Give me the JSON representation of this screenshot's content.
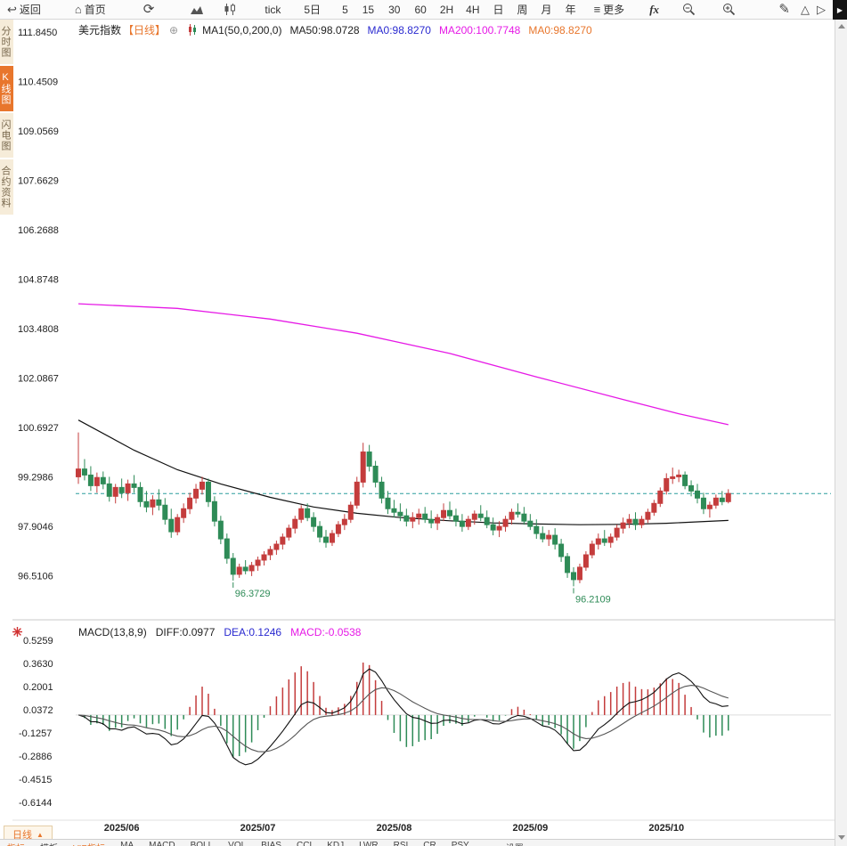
{
  "toolbar": {
    "back": "返回",
    "home": "首页",
    "tick": "tick",
    "day5": "5日",
    "periods": [
      "5",
      "15",
      "30",
      "60",
      "2H",
      "4H",
      "日",
      "周",
      "月",
      "年"
    ],
    "more": "更多",
    "fx": "fx"
  },
  "sidebar": {
    "items": [
      {
        "label": "分时图"
      },
      {
        "label": "K线图"
      },
      {
        "label": "闪电图"
      },
      {
        "label": "合约资料"
      }
    ]
  },
  "legend": {
    "symbol": "美元指数",
    "period_tag": "【日线】",
    "add_icon": "⊕",
    "ma_group": "MA1(50,0,200,0)",
    "ma50": "MA50:98.0728",
    "ma0_blue": "MA0:98.8270",
    "ma200": "MA200:100.7748",
    "ma0_orange": "MA0:98.8270"
  },
  "macd_legend": {
    "title": "MACD(13,8,9)",
    "diff": "DIFF:0.0977",
    "dea": "DEA:0.1246",
    "macd": "MACD:-0.0538"
  },
  "bottom": {
    "period_selector": "日线",
    "arrow": "▲",
    "tabs": [
      "指标",
      "模板",
      "VIP指标",
      "MA",
      "MACD",
      "BOLL",
      "VOL",
      "BIAS",
      "CCI",
      "KDJ",
      "LWR",
      "RSI",
      "CR",
      "PSY",
      "设置"
    ]
  },
  "chart_data": {
    "type": "candlestick",
    "title": "美元指数 日线",
    "colors": {
      "up": "#c43c3c",
      "down": "#2e8b57",
      "ma50": "#111111",
      "ma200": "#e619e6",
      "current": "#2a9d9d",
      "accent": "#e8762c"
    },
    "y_axis_labels": [
      "111.8450",
      "110.4509",
      "109.0569",
      "107.6629",
      "106.2688",
      "104.8748",
      "103.4808",
      "102.0867",
      "100.6927",
      "99.2986",
      "97.9046",
      "96.5106"
    ],
    "macd_axis_labels": [
      "0.5259",
      "0.3630",
      "0.2001",
      "0.0372",
      "-0.1257",
      "-0.2886",
      "-0.4515",
      "-0.6144"
    ],
    "x_labels": [
      {
        "label": "2025/06",
        "i": 7
      },
      {
        "label": "2025/07",
        "i": 29
      },
      {
        "label": "2025/08",
        "i": 51
      },
      {
        "label": "2025/09",
        "i": 73
      },
      {
        "label": "2025/10",
        "i": 95
      }
    ],
    "current_price": 98.827,
    "annotations": [
      {
        "text": "96.3729",
        "i": 25,
        "value": 96.3729
      },
      {
        "text": "96.2109",
        "i": 80,
        "value": 96.2109
      }
    ],
    "ma50_points": [
      [
        0,
        100.9
      ],
      [
        9,
        100.05
      ],
      [
        16,
        99.5
      ],
      [
        23,
        99.1
      ],
      [
        31,
        98.72
      ],
      [
        38,
        98.45
      ],
      [
        45,
        98.27
      ],
      [
        52,
        98.15
      ],
      [
        60,
        98.06
      ],
      [
        67,
        98.0
      ],
      [
        74,
        97.97
      ],
      [
        81,
        97.95
      ],
      [
        88,
        97.96
      ],
      [
        95,
        97.99
      ],
      [
        100,
        98.03
      ],
      [
        105,
        98.07
      ]
    ],
    "ma200_points": [
      [
        0,
        104.18
      ],
      [
        16,
        104.05
      ],
      [
        31,
        103.75
      ],
      [
        45,
        103.35
      ],
      [
        60,
        102.78
      ],
      [
        74,
        102.12
      ],
      [
        88,
        101.48
      ],
      [
        97,
        101.08
      ],
      [
        105,
        100.77
      ]
    ],
    "macd_params": {
      "short": 8,
      "long": 13,
      "signal": 9
    },
    "candles": [
      [
        99.3,
        100.55,
        99.1,
        99.52
      ],
      [
        99.52,
        99.8,
        99.2,
        99.35
      ],
      [
        99.35,
        99.6,
        98.9,
        99.05
      ],
      [
        99.05,
        99.42,
        98.85,
        99.28
      ],
      [
        99.28,
        99.45,
        98.95,
        99.1
      ],
      [
        99.1,
        99.3,
        98.6,
        98.75
      ],
      [
        98.75,
        99.1,
        98.55,
        99.0
      ],
      [
        99.0,
        99.25,
        98.7,
        98.85
      ],
      [
        98.85,
        99.22,
        98.62,
        99.1
      ],
      [
        99.1,
        99.35,
        98.85,
        99.0
      ],
      [
        99.0,
        99.15,
        98.45,
        98.6
      ],
      [
        98.6,
        98.9,
        98.3,
        98.45
      ],
      [
        98.45,
        98.78,
        98.22,
        98.65
      ],
      [
        98.65,
        98.95,
        98.35,
        98.5
      ],
      [
        98.5,
        98.7,
        97.95,
        98.1
      ],
      [
        98.1,
        98.4,
        97.58,
        97.75
      ],
      [
        97.75,
        98.25,
        97.65,
        98.15
      ],
      [
        98.15,
        98.55,
        98.0,
        98.4
      ],
      [
        98.4,
        98.85,
        98.25,
        98.7
      ],
      [
        98.7,
        99.1,
        98.55,
        98.95
      ],
      [
        98.95,
        99.3,
        98.8,
        99.15
      ],
      [
        99.15,
        99.25,
        98.45,
        98.6
      ],
      [
        98.6,
        98.75,
        97.9,
        98.05
      ],
      [
        98.05,
        98.2,
        97.4,
        97.55
      ],
      [
        97.55,
        97.7,
        96.85,
        97.0
      ],
      [
        97.0,
        97.15,
        96.3729,
        96.55
      ],
      [
        96.55,
        96.85,
        96.45,
        96.75
      ],
      [
        96.75,
        96.95,
        96.55,
        96.65
      ],
      [
        96.65,
        96.9,
        96.5,
        96.8
      ],
      [
        96.8,
        97.05,
        96.65,
        96.95
      ],
      [
        96.95,
        97.2,
        96.8,
        97.1
      ],
      [
        97.1,
        97.35,
        96.95,
        97.25
      ],
      [
        97.25,
        97.5,
        97.1,
        97.4
      ],
      [
        97.4,
        97.7,
        97.25,
        97.6
      ],
      [
        97.6,
        97.95,
        97.5,
        97.85
      ],
      [
        97.85,
        98.2,
        97.7,
        98.1
      ],
      [
        98.1,
        98.5,
        98.0,
        98.4
      ],
      [
        98.4,
        98.55,
        98.05,
        98.15
      ],
      [
        98.15,
        98.3,
        97.75,
        97.9
      ],
      [
        97.9,
        98.05,
        97.45,
        97.6
      ],
      [
        97.6,
        97.8,
        97.3,
        97.45
      ],
      [
        97.45,
        97.8,
        97.35,
        97.7
      ],
      [
        97.7,
        98.05,
        97.6,
        97.95
      ],
      [
        97.95,
        98.25,
        97.8,
        98.1
      ],
      [
        98.1,
        98.6,
        98.0,
        98.5
      ],
      [
        98.5,
        99.3,
        98.4,
        99.15
      ],
      [
        99.15,
        100.26,
        99.0,
        100.0
      ],
      [
        100.0,
        100.2,
        99.45,
        99.6
      ],
      [
        99.6,
        99.75,
        99.0,
        99.15
      ],
      [
        99.15,
        99.3,
        98.55,
        98.7
      ],
      [
        98.7,
        98.9,
        98.25,
        98.4
      ],
      [
        98.4,
        98.65,
        98.15,
        98.3
      ],
      [
        98.3,
        98.55,
        98.05,
        98.2
      ],
      [
        98.2,
        98.4,
        97.9,
        98.05
      ],
      [
        98.05,
        98.3,
        97.85,
        98.15
      ],
      [
        98.15,
        98.4,
        97.95,
        98.25
      ],
      [
        98.25,
        98.45,
        98.0,
        98.1
      ],
      [
        98.1,
        98.35,
        97.85,
        98.0
      ],
      [
        98.0,
        98.25,
        97.8,
        98.15
      ],
      [
        98.15,
        98.55,
        98.05,
        98.35
      ],
      [
        98.35,
        98.6,
        98.1,
        98.2
      ],
      [
        98.2,
        98.4,
        97.9,
        98.05
      ],
      [
        98.05,
        98.25,
        97.75,
        97.9
      ],
      [
        97.9,
        98.2,
        97.8,
        98.1
      ],
      [
        98.1,
        98.35,
        97.95,
        98.25
      ],
      [
        98.25,
        98.5,
        98.05,
        98.15
      ],
      [
        98.15,
        98.35,
        97.85,
        97.95
      ],
      [
        97.95,
        98.15,
        97.65,
        97.8
      ],
      [
        97.8,
        98.05,
        97.6,
        97.9
      ],
      [
        97.9,
        98.2,
        97.75,
        98.1
      ],
      [
        98.1,
        98.4,
        97.95,
        98.3
      ],
      [
        98.3,
        98.55,
        98.15,
        98.25
      ],
      [
        98.25,
        98.45,
        97.95,
        98.05
      ],
      [
        98.05,
        98.25,
        97.8,
        97.9
      ],
      [
        97.9,
        98.1,
        97.55,
        97.7
      ],
      [
        97.7,
        97.9,
        97.45,
        97.55
      ],
      [
        97.55,
        97.8,
        97.35,
        97.65
      ],
      [
        97.65,
        97.85,
        97.25,
        97.4
      ],
      [
        97.4,
        97.55,
        96.9,
        97.05
      ],
      [
        97.05,
        97.15,
        96.45,
        96.6
      ],
      [
        96.6,
        96.75,
        96.2109,
        96.4
      ],
      [
        96.4,
        96.85,
        96.3,
        96.75
      ],
      [
        96.75,
        97.2,
        96.65,
        97.1
      ],
      [
        97.1,
        97.5,
        97.0,
        97.4
      ],
      [
        97.4,
        97.7,
        97.25,
        97.55
      ],
      [
        97.55,
        97.8,
        97.35,
        97.45
      ],
      [
        97.45,
        97.7,
        97.3,
        97.6
      ],
      [
        97.6,
        97.95,
        97.5,
        97.85
      ],
      [
        97.85,
        98.15,
        97.7,
        98.0
      ],
      [
        98.0,
        98.25,
        97.85,
        98.1
      ],
      [
        98.1,
        98.3,
        97.8,
        97.95
      ],
      [
        97.95,
        98.2,
        97.85,
        98.1
      ],
      [
        98.1,
        98.4,
        98.0,
        98.3
      ],
      [
        98.3,
        98.65,
        98.2,
        98.55
      ],
      [
        98.55,
        99.0,
        98.45,
        98.9
      ],
      [
        98.9,
        99.4,
        98.8,
        99.25
      ],
      [
        99.25,
        99.56,
        99.1,
        99.3
      ],
      [
        99.3,
        99.5,
        99.15,
        99.35
      ],
      [
        99.35,
        99.45,
        98.95,
        99.05
      ],
      [
        99.05,
        99.2,
        98.75,
        98.9
      ],
      [
        98.9,
        99.1,
        98.55,
        98.7
      ],
      [
        98.7,
        98.85,
        98.25,
        98.4
      ],
      [
        98.4,
        98.6,
        98.15,
        98.5
      ],
      [
        98.5,
        98.8,
        98.4,
        98.7
      ],
      [
        98.7,
        98.9,
        98.5,
        98.6
      ],
      [
        98.6,
        98.95,
        98.55,
        98.83
      ]
    ]
  }
}
